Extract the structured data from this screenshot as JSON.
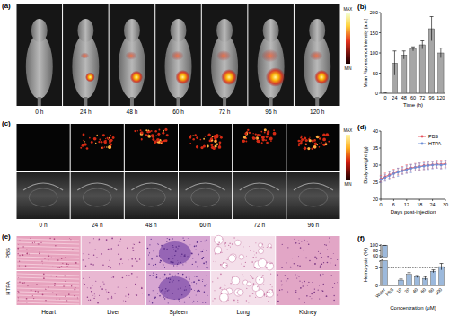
{
  "chart_data": [
    {
      "type": "bar",
      "panel_label": "(b)",
      "y_label": "Mean Fluorescence Intensity (a.u.)",
      "x_label": "Time (h)",
      "categories": [
        "0",
        "24",
        "48",
        "60",
        "72",
        "96",
        "120"
      ],
      "values": [
        0,
        75,
        95,
        110,
        120,
        160,
        100
      ],
      "errors": [
        2,
        30,
        10,
        5,
        10,
        30,
        12
      ],
      "color": "#a6a6a6",
      "ylim": [
        0,
        200
      ],
      "yticks": [
        0,
        50,
        100,
        150,
        200
      ]
    },
    {
      "type": "line",
      "panel_label": "(d)",
      "y_label": "Body weight (g)",
      "x_label": "Days post-injection",
      "x": [
        0,
        2,
        4,
        6,
        8,
        10,
        12,
        14,
        16,
        18,
        20,
        22,
        24,
        26,
        28,
        30
      ],
      "series": [
        {
          "name": "PBS",
          "color": "#e8545e",
          "marker": "circle",
          "values": [
            26.0,
            26.6,
            27.2,
            27.6,
            28.1,
            28.5,
            28.9,
            29.2,
            29.4,
            29.6,
            29.9,
            30.0,
            30.1,
            30.3,
            30.2,
            30.4
          ],
          "errors": [
            1.0,
            1.1,
            1.0,
            1.2,
            1.0,
            1.1,
            1.2,
            1.0,
            1.1,
            1.0,
            1.2,
            1.1,
            1.0,
            1.1,
            1.2,
            1.0
          ]
        },
        {
          "name": "HTPA",
          "color": "#6e8fd6",
          "marker": "circle",
          "values": [
            25.8,
            26.3,
            26.9,
            27.5,
            27.9,
            28.3,
            28.7,
            29.0,
            29.3,
            29.5,
            29.7,
            29.9,
            30.0,
            30.1,
            30.0,
            30.2
          ],
          "errors": [
            0.9,
            1.0,
            1.1,
            1.0,
            1.2,
            1.0,
            1.1,
            1.2,
            1.0,
            1.1,
            1.0,
            1.2,
            1.1,
            1.0,
            1.1,
            1.2
          ]
        }
      ],
      "xlim": [
        0,
        30
      ],
      "xticks": [
        0,
        6,
        12,
        18,
        24,
        30
      ],
      "ylim": [
        20,
        40
      ],
      "yticks": [
        20,
        25,
        30,
        35,
        40
      ],
      "legend": "upper right"
    },
    {
      "type": "bar",
      "panel_label": "(f)",
      "y_label": "Hemolysis (%)",
      "x_label": "Concentration (μM)",
      "categories": [
        "Water",
        "PBS",
        "10",
        "20",
        "40",
        "60",
        "80",
        "100"
      ],
      "values": [
        100,
        0,
        1.5,
        3.1,
        2.5,
        2.0,
        4.0,
        5.3
      ],
      "errors": [
        0,
        0,
        0.3,
        0.5,
        0.3,
        0.5,
        0.4,
        0.9
      ],
      "color": "#9cb9dc",
      "ylim": [
        0,
        105
      ],
      "axis_break": [
        7,
        55
      ],
      "yticks": [
        0,
        5,
        60,
        80,
        100
      ],
      "reference_line": 5
    }
  ],
  "images": {
    "a": {
      "panel_label": "(a)",
      "times": [
        "0 h",
        "24 h",
        "48 h",
        "60 h",
        "72 h",
        "96 h",
        "120 h"
      ],
      "colorbar": [
        "MAX",
        "MIN"
      ]
    },
    "c": {
      "panel_label": "(c)",
      "times": [
        "0 h",
        "24 h",
        "48 h",
        "60 h",
        "72 h",
        "96 h"
      ],
      "colorbar": [
        "MAX",
        "MIN"
      ]
    },
    "e": {
      "panel_label": "(e)",
      "rows": [
        "PBS",
        "HTPA"
      ],
      "organs": [
        "Heart",
        "Liver",
        "Spleen",
        "Lung",
        "Kidney"
      ]
    }
  }
}
